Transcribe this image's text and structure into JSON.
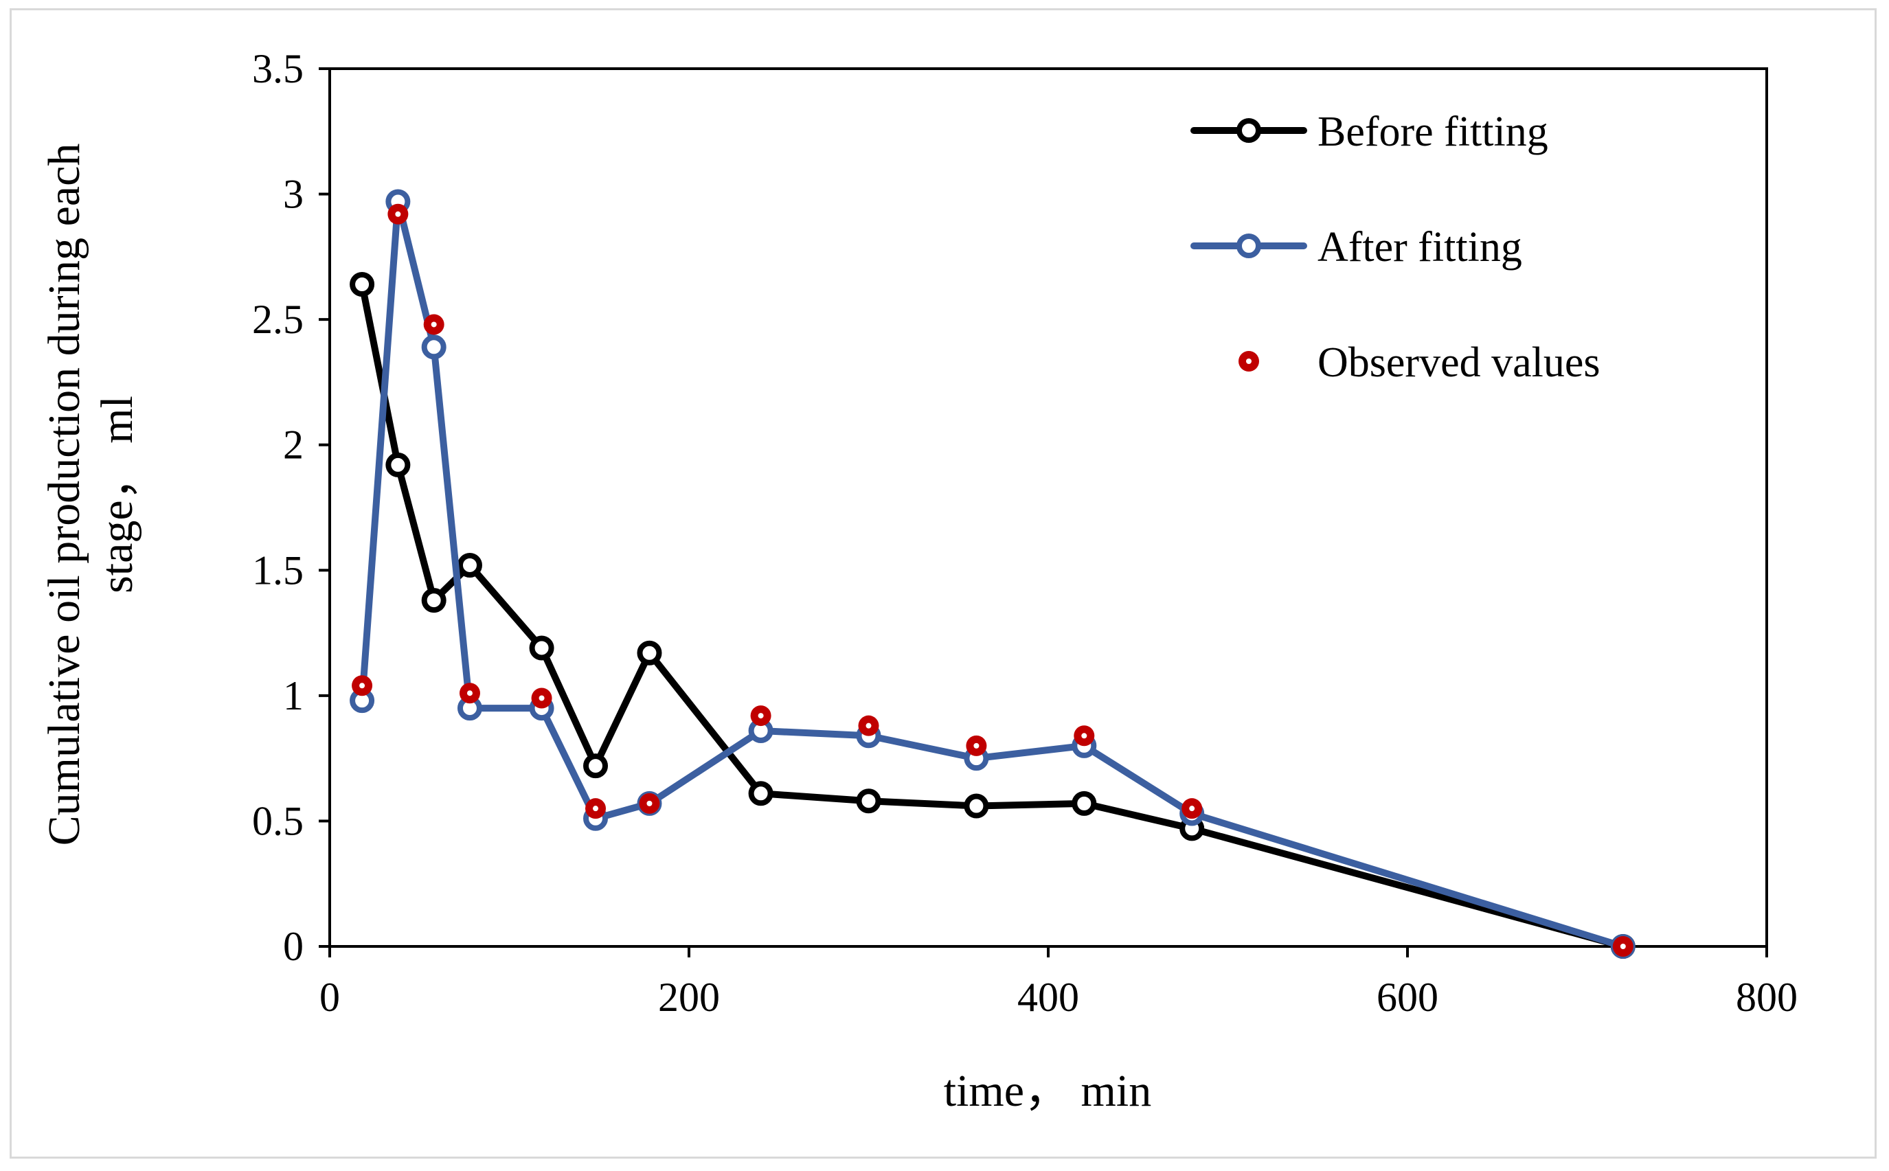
{
  "chart_data": {
    "type": "line",
    "xlabel": "time，  min",
    "ylabel_lines": [
      "Cumulative oil production during each",
      "stage，  ml"
    ],
    "xlim": [
      0,
      800
    ],
    "ylim": [
      0,
      3.5
    ],
    "x_ticks": [
      0,
      200,
      400,
      600,
      800
    ],
    "y_ticks": [
      0,
      0.5,
      1,
      1.5,
      2,
      2.5,
      3,
      3.5
    ],
    "x_tick_labels": [
      "0",
      "200",
      "400",
      "600",
      "800"
    ],
    "y_tick_labels": [
      "0",
      "0.5",
      "1",
      "1.5",
      "2",
      "2.5",
      "3",
      "3.5"
    ],
    "grid": false,
    "legend_position": "top-right",
    "series": [
      {
        "name": "Before fitting",
        "style": "line-markers",
        "color": "#000000",
        "x": [
          18,
          38,
          58,
          78,
          118,
          148,
          178,
          240,
          300,
          360,
          420,
          480,
          720
        ],
        "y": [
          2.64,
          1.92,
          1.38,
          1.52,
          1.19,
          0.72,
          1.17,
          0.61,
          0.58,
          0.56,
          0.57,
          0.47,
          0.0
        ]
      },
      {
        "name": "After fitting",
        "style": "line-markers",
        "color": "#3c5fa0",
        "x": [
          18,
          38,
          58,
          78,
          118,
          148,
          178,
          240,
          300,
          360,
          420,
          480,
          720
        ],
        "y": [
          0.98,
          2.97,
          2.39,
          0.95,
          0.95,
          0.51,
          0.57,
          0.86,
          0.84,
          0.75,
          0.8,
          0.53,
          0.0
        ]
      },
      {
        "name": "Observed values",
        "style": "markers",
        "color": "#c00000",
        "x": [
          18,
          38,
          58,
          78,
          118,
          148,
          178,
          240,
          300,
          360,
          420,
          480,
          720
        ],
        "y": [
          1.04,
          2.92,
          2.48,
          1.01,
          0.99,
          0.55,
          0.57,
          0.92,
          0.88,
          0.8,
          0.84,
          0.55,
          0.0
        ]
      }
    ]
  }
}
